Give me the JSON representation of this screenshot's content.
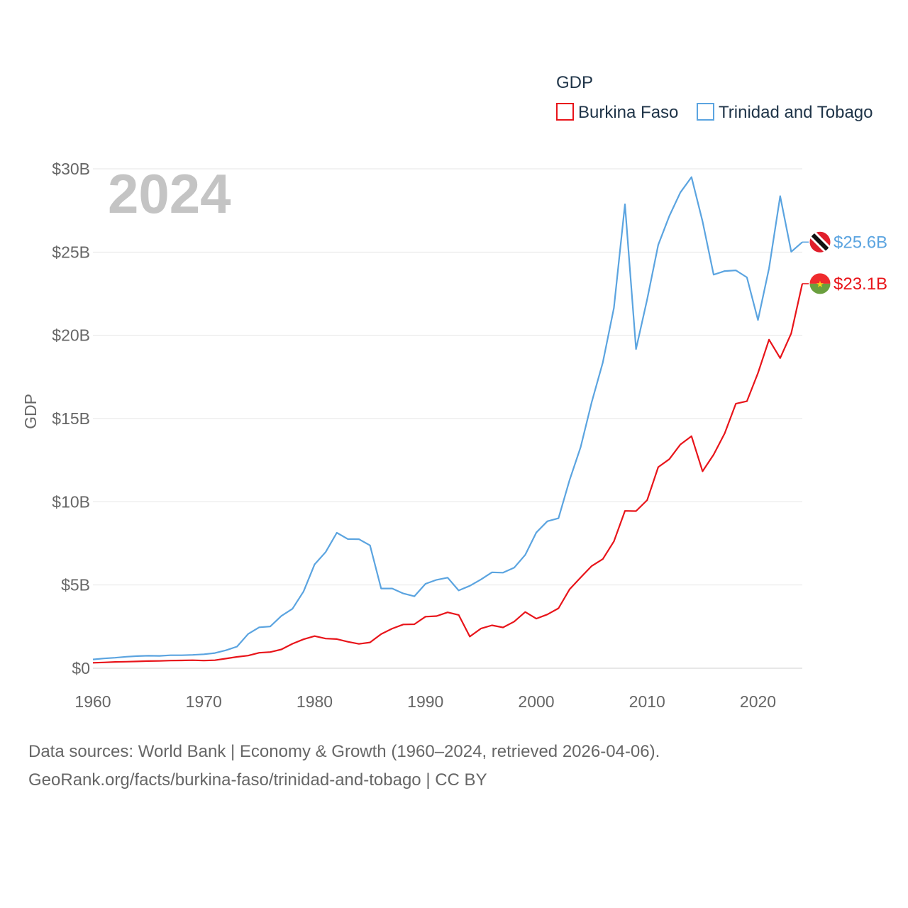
{
  "chart_data": {
    "type": "line",
    "xlabel": "",
    "ylabel": "GDP",
    "ylim": [
      0,
      30
    ],
    "xlim": [
      1960,
      2024
    ],
    "yticks": [
      0,
      5,
      10,
      15,
      20,
      25,
      30
    ],
    "ytick_labels": [
      "$0",
      "$5B",
      "$10B",
      "$15B",
      "$20B",
      "$25B",
      "$30B"
    ],
    "xticks": [
      1960,
      1970,
      1980,
      1990,
      2000,
      2010,
      2020
    ],
    "xtick_labels": [
      "1960",
      "1970",
      "1980",
      "1990",
      "2000",
      "2010",
      "2020"
    ],
    "year_label": "2024",
    "legend": {
      "title": "GDP",
      "position": "top-right"
    },
    "x": [
      1960,
      1961,
      1962,
      1963,
      1964,
      1965,
      1966,
      1967,
      1968,
      1969,
      1970,
      1971,
      1972,
      1973,
      1974,
      1975,
      1976,
      1977,
      1978,
      1979,
      1980,
      1981,
      1982,
      1983,
      1984,
      1985,
      1986,
      1987,
      1988,
      1989,
      1990,
      1991,
      1992,
      1993,
      1994,
      1995,
      1996,
      1997,
      1998,
      1999,
      2000,
      2001,
      2002,
      2003,
      2004,
      2005,
      2006,
      2007,
      2008,
      2009,
      2010,
      2011,
      2012,
      2013,
      2014,
      2015,
      2016,
      2017,
      2018,
      2019,
      2020,
      2021,
      2022,
      2023,
      2024
    ],
    "series": [
      {
        "name": "Burkina Faso",
        "color": "#e8141a",
        "end_label": "$23.1B",
        "flag": "burkina-faso",
        "values": [
          0.33,
          0.35,
          0.38,
          0.39,
          0.41,
          0.43,
          0.44,
          0.46,
          0.47,
          0.48,
          0.46,
          0.48,
          0.58,
          0.68,
          0.76,
          0.93,
          0.97,
          1.13,
          1.47,
          1.74,
          1.93,
          1.78,
          1.75,
          1.59,
          1.46,
          1.55,
          2.05,
          2.38,
          2.63,
          2.64,
          3.1,
          3.13,
          3.36,
          3.2,
          1.9,
          2.38,
          2.58,
          2.45,
          2.8,
          3.38,
          2.98,
          3.23,
          3.6,
          4.74,
          5.45,
          6.14,
          6.56,
          7.62,
          9.45,
          9.44,
          10.1,
          12.08,
          12.56,
          13.44,
          13.94,
          11.83,
          12.83,
          14.11,
          15.89,
          16.04,
          17.73,
          19.74,
          18.63,
          20.12,
          23.1
        ]
      },
      {
        "name": "Trinidad and Tobago",
        "color": "#5ba4e0",
        "end_label": "$25.6B",
        "flag": "trinidad-and-tobago",
        "values": [
          0.53,
          0.59,
          0.63,
          0.69,
          0.73,
          0.75,
          0.74,
          0.78,
          0.78,
          0.8,
          0.84,
          0.91,
          1.08,
          1.3,
          2.06,
          2.46,
          2.51,
          3.14,
          3.57,
          4.61,
          6.24,
          6.98,
          8.14,
          7.76,
          7.75,
          7.38,
          4.79,
          4.79,
          4.49,
          4.32,
          5.07,
          5.31,
          5.44,
          4.67,
          4.95,
          5.33,
          5.76,
          5.74,
          6.04,
          6.81,
          8.15,
          8.83,
          9.01,
          11.3,
          13.28,
          15.98,
          18.37,
          21.64,
          27.87,
          19.17,
          22.16,
          25.43,
          27.16,
          28.58,
          29.5,
          26.84,
          23.64,
          23.86,
          23.9,
          23.48,
          20.92,
          24.02,
          28.36,
          25.02,
          25.6
        ]
      }
    ]
  },
  "footer": {
    "line1": "Data sources: World Bank | Economy & Growth (1960–2024, retrieved 2026-04-06).",
    "line2": "GeoRank.org/facts/burkina-faso/trinidad-and-tobago | CC BY"
  }
}
